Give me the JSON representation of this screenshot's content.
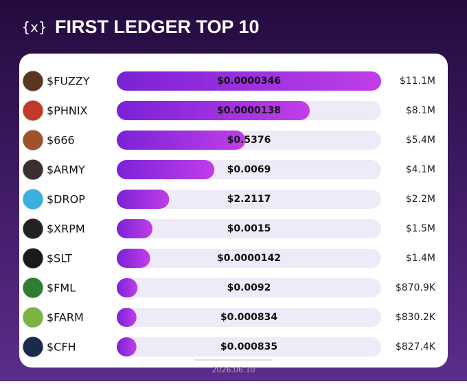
{
  "logo": "{x}",
  "chart_data": {
    "type": "bar",
    "title": "FIRST LEDGER TOP 10",
    "categories": [
      "$FUZZY",
      "$PHNIX",
      "$666",
      "$ARMY",
      "$DROP",
      "$XRPM",
      "$SLT",
      "$FML",
      "$FARM",
      "$CFH"
    ],
    "prices": [
      "$0.0000346",
      "$0.0000138",
      "$0.5376",
      "$0.0069",
      "$2.2117",
      "$0.0015",
      "$0.0000142",
      "$0.0092",
      "$0.000834",
      "$0.000835"
    ],
    "values": [
      11100000,
      8100000,
      5400000,
      4100000,
      2200000,
      1500000,
      1400000,
      870900,
      830200,
      827400
    ],
    "value_labels": [
      "$11.1M",
      "$8.1M",
      "$5.4M",
      "$4.1M",
      "$2.2M",
      "$1.5M",
      "$1.4M",
      "$870.9K",
      "$830.2K",
      "$827.4K"
    ],
    "xlim": [
      0,
      11100000
    ],
    "color": "#8a2be2",
    "date": "2026.06.10"
  }
}
